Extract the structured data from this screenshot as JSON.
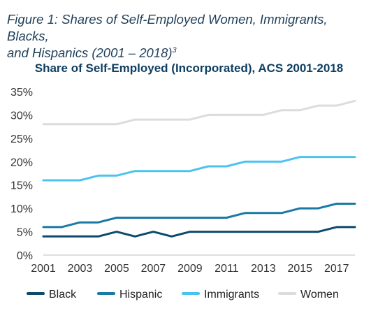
{
  "figure": {
    "caption_line1": "Figure 1: Shares of Self-Employed Women, Immigrants, Blacks,",
    "caption_line2": "and Hispanics (2001 – 2018)",
    "caption_footnote": "3"
  },
  "chart_data": {
    "type": "line",
    "title": "Share of Self-Employed (Incorporated), ACS 2001-2018",
    "xlabel": "",
    "ylabel": "",
    "x": [
      2001,
      2002,
      2003,
      2004,
      2005,
      2006,
      2007,
      2008,
      2009,
      2010,
      2011,
      2012,
      2013,
      2014,
      2015,
      2016,
      2017,
      2018
    ],
    "x_tick_labels": [
      "2001",
      "2003",
      "2005",
      "2007",
      "2009",
      "2011",
      "2013",
      "2015",
      "2017"
    ],
    "y_tick_labels": [
      "0%",
      "5%",
      "10%",
      "15%",
      "20%",
      "25%",
      "30%",
      "35%"
    ],
    "ylim": [
      0,
      35
    ],
    "y_unit": "%",
    "grid": false,
    "legend_position": "bottom",
    "series": [
      {
        "name": "Black",
        "color": "#0d4a6b",
        "values": [
          4,
          4,
          4,
          4,
          5,
          4,
          5,
          4,
          5,
          5,
          5,
          5,
          5,
          5,
          5,
          5,
          6,
          6
        ]
      },
      {
        "name": "Hispanic",
        "color": "#1a7aa3",
        "values": [
          6,
          6,
          7,
          7,
          8,
          8,
          8,
          8,
          8,
          8,
          8,
          9,
          9,
          9,
          10,
          10,
          11,
          11
        ]
      },
      {
        "name": "Immigrants",
        "color": "#4cc3ee",
        "values": [
          16,
          16,
          16,
          17,
          17,
          18,
          18,
          18,
          18,
          19,
          19,
          20,
          20,
          20,
          21,
          21,
          21,
          21
        ]
      },
      {
        "name": "Women",
        "color": "#dcdcdc",
        "values": [
          28,
          28,
          28,
          28,
          28,
          29,
          29,
          29,
          29,
          30,
          30,
          30,
          30,
          31,
          31,
          32,
          32,
          33
        ]
      }
    ]
  }
}
